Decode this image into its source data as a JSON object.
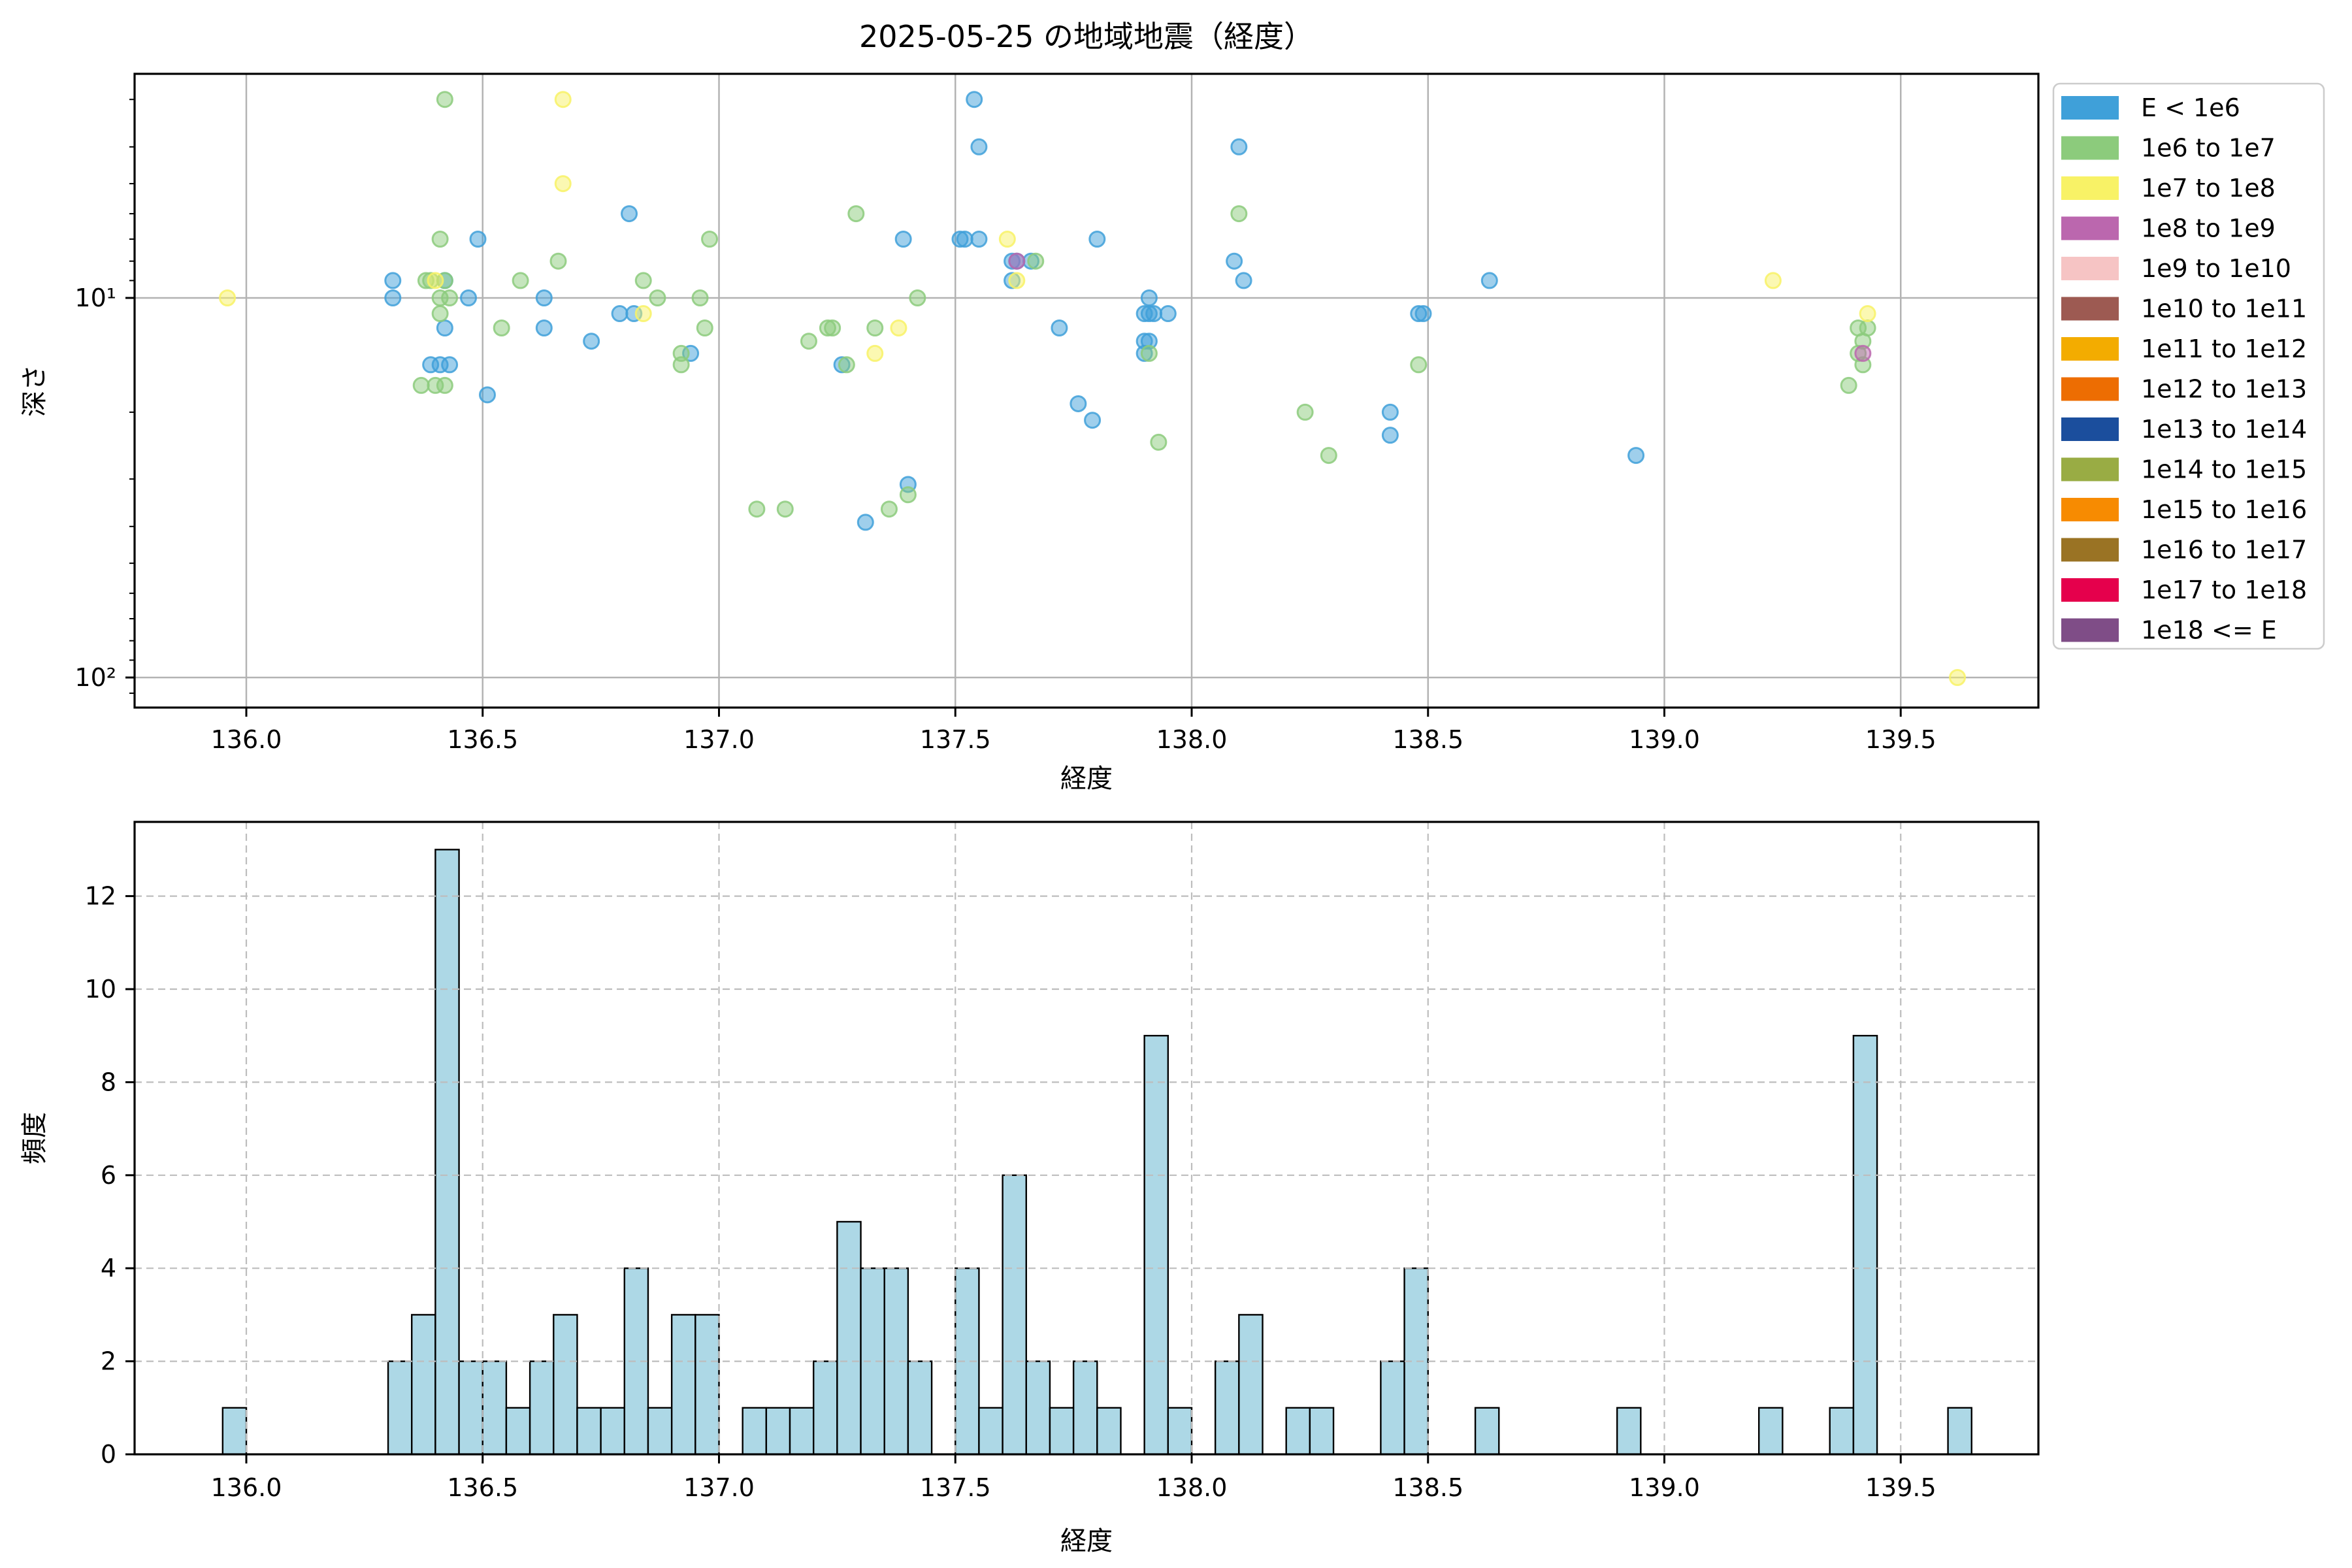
{
  "figure": {
    "title": "2025-05-25 の地域地震（経度）"
  },
  "colors": {
    "background": "#ffffff",
    "spine": "#000000",
    "grid_top": "#b3b3b3",
    "grid_bottom": "#bdbdbd",
    "hist_bar_fill": "#add8e6",
    "hist_bar_edge": "#000000",
    "text": "#000000",
    "legend_border": "#cccccc"
  },
  "legend": {
    "items": [
      {
        "label": "E < 1e6",
        "color": "#3fa0d9"
      },
      {
        "label": "1e6 to 1e7",
        "color": "#8ccb7c"
      },
      {
        "label": "1e7 to 1e8",
        "color": "#f8f266"
      },
      {
        "label": "1e8 to 1e9",
        "color": "#bb67ae"
      },
      {
        "label": "1e9 to 1e10",
        "color": "#f6c4c4"
      },
      {
        "label": "1e10 to 1e11",
        "color": "#9d5a52"
      },
      {
        "label": "1e11 to 1e12",
        "color": "#f3ac00"
      },
      {
        "label": "1e12 to 1e13",
        "color": "#ed6d02"
      },
      {
        "label": "1e13 to 1e14",
        "color": "#1b4e9d"
      },
      {
        "label": "1e14 to 1e15",
        "color": "#99ac44"
      },
      {
        "label": "1e15 to 1e16",
        "color": "#f78b01"
      },
      {
        "label": "1e16 to 1e17",
        "color": "#9a7324"
      },
      {
        "label": "1e17 to 1e18",
        "color": "#e5004c"
      },
      {
        "label": "1e18 <= E",
        "color": "#7f4d87"
      }
    ]
  },
  "scatter_chart": {
    "xlabel": "経度",
    "ylabel": "深さ",
    "xlim": [
      135.764,
      139.791
    ],
    "ylim": [
      2.57,
      120
    ],
    "y_scale": "log-inverted",
    "xtick_values": [
      136.0,
      136.5,
      137.0,
      137.5,
      138.0,
      138.5,
      139.0,
      139.5
    ],
    "xtick_labels": [
      "136.0",
      "136.5",
      "137.0",
      "137.5",
      "138.0",
      "138.5",
      "139.0",
      "139.5"
    ],
    "ytick_values": [
      10,
      100
    ],
    "ytick_labels": [
      "10¹",
      "10²"
    ],
    "y_minor_ticks": [
      3,
      4,
      5,
      6,
      7,
      8,
      9,
      20,
      30,
      40,
      50,
      60,
      70,
      80,
      90,
      110
    ]
  },
  "hist_chart": {
    "xlabel": "経度",
    "ylabel": "頻度",
    "xlim": [
      135.764,
      139.791
    ],
    "ylim": [
      0,
      13.6
    ],
    "xtick_values": [
      136.0,
      136.5,
      137.0,
      137.5,
      138.0,
      138.5,
      139.0,
      139.5
    ],
    "xtick_labels": [
      "136.0",
      "136.5",
      "137.0",
      "137.5",
      "138.0",
      "138.5",
      "139.0",
      "139.5"
    ],
    "ytick_values": [
      0,
      2,
      4,
      6,
      8,
      10,
      12
    ],
    "ytick_labels": [
      "0",
      "2",
      "4",
      "6",
      "8",
      "10",
      "12"
    ]
  },
  "chart_data": [
    {
      "type": "scatter",
      "title": "2025-05-25 の地域地震（経度）",
      "xlabel": "経度",
      "ylabel": "深さ",
      "xlim": [
        135.764,
        139.791
      ],
      "ylim": [
        2.57,
        120
      ],
      "legend_position": "outside-right",
      "grid": "solid-major",
      "series": [
        {
          "name": "E < 1e6",
          "color": "#3fa0d9",
          "points": [
            [
              136.31,
              9
            ],
            [
              136.31,
              10
            ],
            [
              136.39,
              15
            ],
            [
              136.42,
              9
            ],
            [
              136.42,
              12
            ],
            [
              136.41,
              15
            ],
            [
              136.43,
              15
            ],
            [
              136.47,
              10
            ],
            [
              136.49,
              7
            ],
            [
              136.51,
              18
            ],
            [
              136.63,
              10
            ],
            [
              136.63,
              12
            ],
            [
              136.73,
              13
            ],
            [
              136.79,
              11
            ],
            [
              136.82,
              11
            ],
            [
              136.81,
              6
            ],
            [
              136.94,
              14
            ],
            [
              137.26,
              15
            ],
            [
              137.31,
              39
            ],
            [
              137.39,
              7
            ],
            [
              137.4,
              31
            ],
            [
              137.51,
              7
            ],
            [
              137.52,
              7
            ],
            [
              137.54,
              3
            ],
            [
              137.55,
              4
            ],
            [
              137.55,
              7
            ],
            [
              137.62,
              8
            ],
            [
              137.63,
              8
            ],
            [
              137.62,
              9
            ],
            [
              137.66,
              8
            ],
            [
              137.72,
              12
            ],
            [
              137.76,
              19
            ],
            [
              137.79,
              21
            ],
            [
              137.8,
              7
            ],
            [
              137.91,
              10
            ],
            [
              137.9,
              11
            ],
            [
              137.91,
              11
            ],
            [
              137.92,
              11
            ],
            [
              137.95,
              11
            ],
            [
              137.9,
              13
            ],
            [
              137.91,
              13
            ],
            [
              137.9,
              14
            ],
            [
              138.1,
              4
            ],
            [
              138.09,
              8
            ],
            [
              138.11,
              9
            ],
            [
              138.42,
              20
            ],
            [
              138.42,
              23
            ],
            [
              138.48,
              11
            ],
            [
              138.49,
              11
            ],
            [
              138.63,
              9
            ],
            [
              138.94,
              26
            ]
          ]
        },
        {
          "name": "1e6 to 1e7",
          "color": "#8ccb7c",
          "points": [
            [
              136.42,
              3
            ],
            [
              136.41,
              7
            ],
            [
              136.38,
              9
            ],
            [
              136.39,
              9
            ],
            [
              136.42,
              9
            ],
            [
              136.41,
              10
            ],
            [
              136.43,
              10
            ],
            [
              136.41,
              11
            ],
            [
              136.37,
              17
            ],
            [
              136.4,
              17
            ],
            [
              136.42,
              17
            ],
            [
              136.54,
              12
            ],
            [
              136.58,
              9
            ],
            [
              136.66,
              8
            ],
            [
              136.84,
              9
            ],
            [
              136.87,
              10
            ],
            [
              136.92,
              14
            ],
            [
              136.92,
              15
            ],
            [
              136.96,
              10
            ],
            [
              136.98,
              7
            ],
            [
              136.97,
              12
            ],
            [
              137.08,
              36
            ],
            [
              137.14,
              36
            ],
            [
              137.19,
              13
            ],
            [
              137.23,
              12
            ],
            [
              137.24,
              12
            ],
            [
              137.29,
              6
            ],
            [
              137.27,
              15
            ],
            [
              137.33,
              12
            ],
            [
              137.36,
              36
            ],
            [
              137.4,
              33
            ],
            [
              137.42,
              10
            ],
            [
              137.67,
              8
            ],
            [
              137.91,
              14
            ],
            [
              137.93,
              24
            ],
            [
              138.1,
              6
            ],
            [
              138.24,
              20
            ],
            [
              138.29,
              26
            ],
            [
              138.48,
              15
            ],
            [
              139.39,
              17
            ],
            [
              139.41,
              12
            ],
            [
              139.43,
              12
            ],
            [
              139.42,
              13
            ],
            [
              139.41,
              14
            ],
            [
              139.42,
              15
            ]
          ]
        },
        {
          "name": "1e7 to 1e8",
          "color": "#f8f266",
          "points": [
            [
              135.96,
              10
            ],
            [
              136.4,
              9
            ],
            [
              136.67,
              3
            ],
            [
              136.67,
              5
            ],
            [
              136.84,
              11
            ],
            [
              137.33,
              14
            ],
            [
              137.38,
              12
            ],
            [
              137.61,
              7
            ],
            [
              137.63,
              9
            ],
            [
              139.23,
              9
            ],
            [
              139.43,
              11
            ],
            [
              139.62,
              100
            ]
          ]
        },
        {
          "name": "1e8 to 1e9",
          "color": "#bb67ae",
          "points": [
            [
              137.63,
              8
            ],
            [
              139.42,
              14
            ]
          ]
        }
      ]
    },
    {
      "type": "bar",
      "subtype": "histogram",
      "xlabel": "経度",
      "ylabel": "頻度",
      "xlim": [
        135.764,
        139.791
      ],
      "ylim": [
        0,
        13.6
      ],
      "grid": "dashed",
      "bin_width": 0.05,
      "bins": [
        [
          135.95,
          1
        ],
        [
          136.3,
          2
        ],
        [
          136.35,
          3
        ],
        [
          136.4,
          13
        ],
        [
          136.45,
          2
        ],
        [
          136.5,
          2
        ],
        [
          136.55,
          1
        ],
        [
          136.6,
          2
        ],
        [
          136.65,
          3
        ],
        [
          136.7,
          1
        ],
        [
          136.75,
          1
        ],
        [
          136.8,
          4
        ],
        [
          136.85,
          1
        ],
        [
          136.9,
          3
        ],
        [
          136.95,
          3
        ],
        [
          137.05,
          1
        ],
        [
          137.1,
          1
        ],
        [
          137.15,
          1
        ],
        [
          137.2,
          2
        ],
        [
          137.25,
          5
        ],
        [
          137.3,
          4
        ],
        [
          137.35,
          4
        ],
        [
          137.4,
          2
        ],
        [
          137.5,
          4
        ],
        [
          137.55,
          1
        ],
        [
          137.6,
          6
        ],
        [
          137.65,
          2
        ],
        [
          137.7,
          1
        ],
        [
          137.75,
          2
        ],
        [
          137.8,
          1
        ],
        [
          137.9,
          9
        ],
        [
          137.95,
          1
        ],
        [
          138.05,
          2
        ],
        [
          138.1,
          3
        ],
        [
          138.2,
          1
        ],
        [
          138.25,
          1
        ],
        [
          138.4,
          2
        ],
        [
          138.45,
          4
        ],
        [
          138.6,
          1
        ],
        [
          138.9,
          1
        ],
        [
          139.2,
          1
        ],
        [
          139.35,
          1
        ],
        [
          139.4,
          9
        ],
        [
          139.6,
          1
        ]
      ]
    }
  ]
}
